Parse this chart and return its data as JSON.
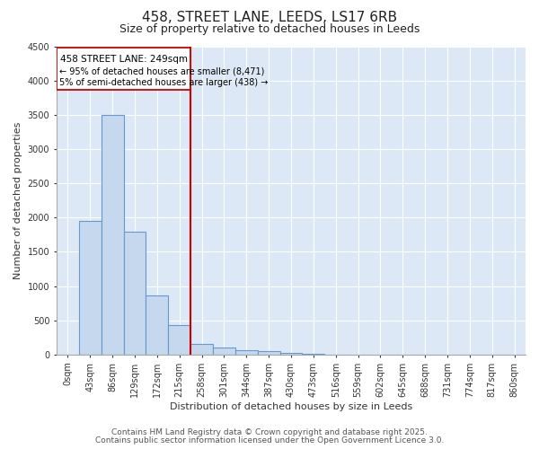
{
  "title": "458, STREET LANE, LEEDS, LS17 6RB",
  "subtitle": "Size of property relative to detached houses in Leeds",
  "xlabel": "Distribution of detached houses by size in Leeds",
  "ylabel": "Number of detached properties",
  "property_label": "458 STREET LANE: 249sqm",
  "annotation1": "← 95% of detached houses are smaller (8,471)",
  "annotation2": "5% of semi-detached houses are larger (438) →",
  "categories": [
    "0sqm",
    "43sqm",
    "86sqm",
    "129sqm",
    "172sqm",
    "215sqm",
    "258sqm",
    "301sqm",
    "344sqm",
    "387sqm",
    "430sqm",
    "473sqm",
    "516sqm",
    "559sqm",
    "602sqm",
    "645sqm",
    "688sqm",
    "731sqm",
    "774sqm",
    "817sqm",
    "860sqm"
  ],
  "values": [
    5,
    1950,
    3500,
    1800,
    860,
    430,
    160,
    100,
    60,
    50,
    20,
    10,
    5,
    3,
    2,
    1,
    0,
    0,
    0,
    0,
    0
  ],
  "bar_color": "#c5d8ee",
  "bar_edge_color": "#6699cc",
  "vline_color": "#cc0000",
  "box_color": "#cc0000",
  "box_text_color": "#000000",
  "ylim": [
    0,
    4500
  ],
  "yticks": [
    0,
    500,
    1000,
    1500,
    2000,
    2500,
    3000,
    3500,
    4000,
    4500
  ],
  "fig_bg_color": "#ffffff",
  "plot_bg_color": "#dce8f5",
  "grid_color": "#ffffff",
  "footer1": "Contains HM Land Registry data © Crown copyright and database right 2025.",
  "footer2": "Contains public sector information licensed under the Open Government Licence 3.0.",
  "title_fontsize": 11,
  "subtitle_fontsize": 9,
  "label_fontsize": 8,
  "tick_fontsize": 7,
  "footer_fontsize": 6.5
}
